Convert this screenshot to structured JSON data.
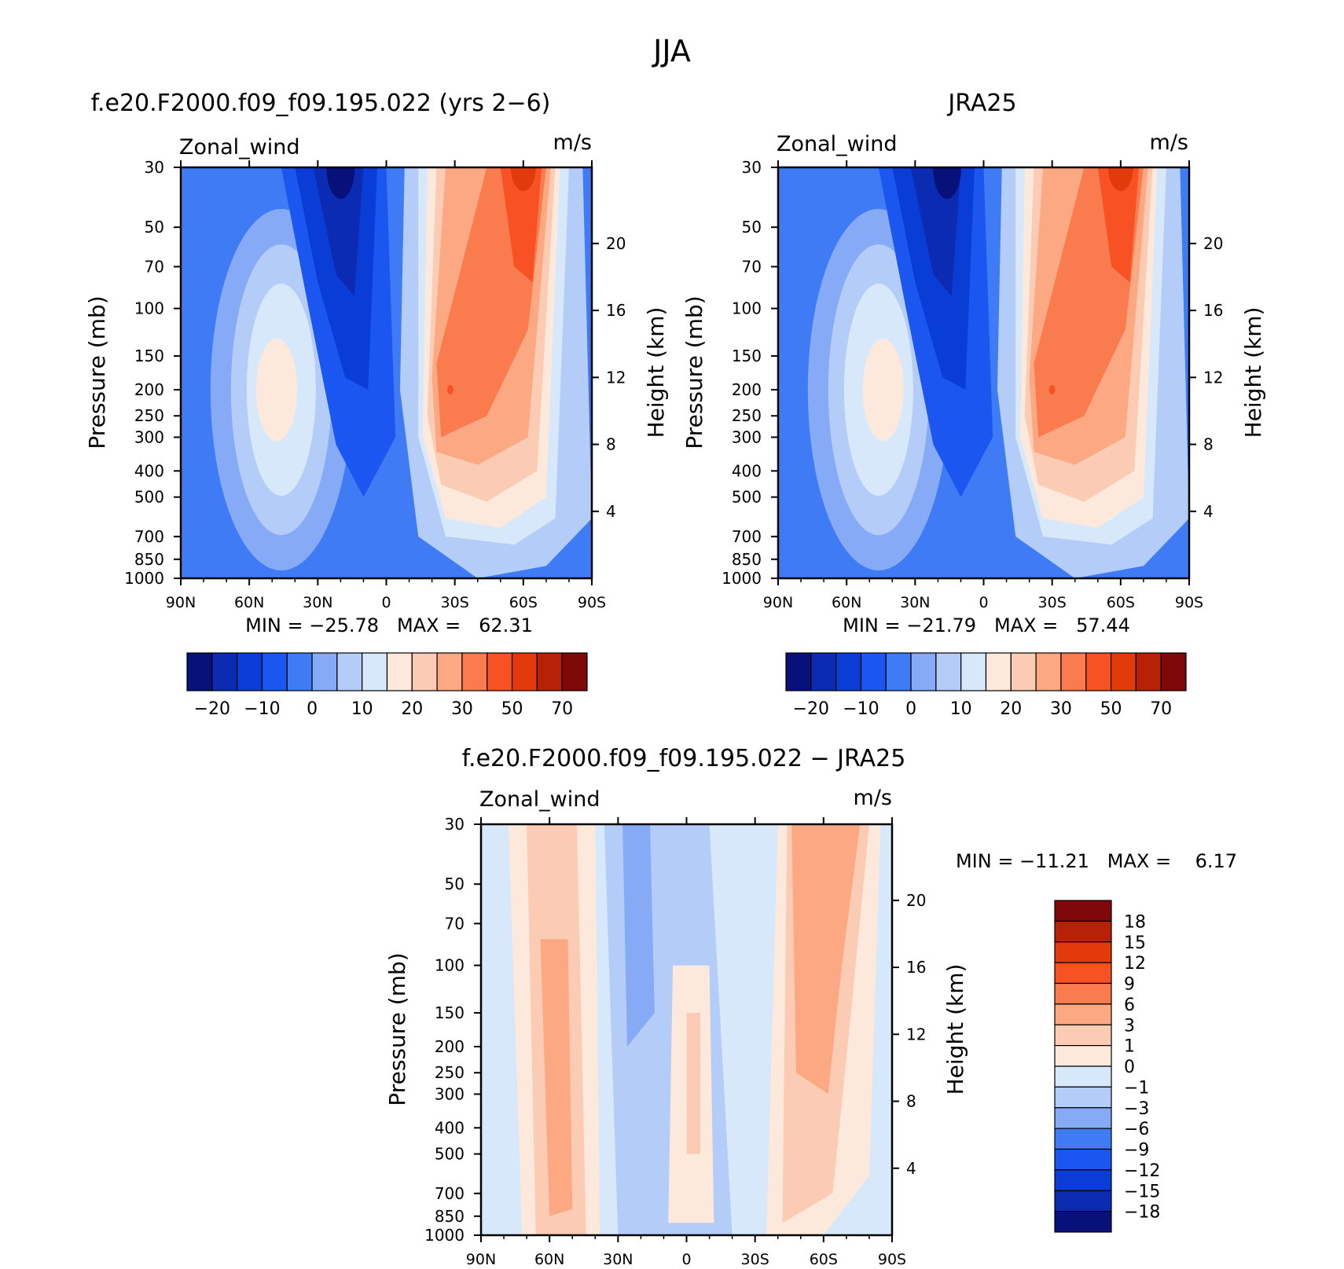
{
  "page_title": "JJA",
  "chart_data": [
    {
      "id": "model",
      "type": "heatmap",
      "title": "f.e20.F2000.f09_f09.195.022 (yrs 2−6)",
      "variable_label": "Zonal_wind",
      "units_label": "m/s",
      "ylabel": "Pressure (mb)",
      "y2label": "Height (km)",
      "x_ticks": [
        "90N",
        "60N",
        "30N",
        "0",
        "30S",
        "60S",
        "90S"
      ],
      "y_ticks": [
        "30",
        "50",
        "70",
        "100",
        "150",
        "200",
        "250",
        "300",
        "400",
        "500",
        "700",
        "850",
        "1000"
      ],
      "y2_ticks": [
        "20",
        "16",
        "12",
        "8",
        "4"
      ],
      "stats": "MIN = −25.78   MAX =   62.31",
      "colorbar_labels": [
        "−20",
        "−10",
        "0",
        "10",
        "20",
        "30",
        "50",
        "70"
      ],
      "colorbar_levels": [
        -25,
        -20,
        -15,
        -10,
        -5,
        0,
        5,
        10,
        15,
        20,
        25,
        30,
        40,
        50,
        60,
        70,
        80
      ],
      "features": [
        {
          "lat": -28,
          "p": 200,
          "peak": 62.31
        },
        {
          "lat": -60,
          "p": 30,
          "peak": 60
        },
        {
          "lat": 48,
          "p": 200,
          "peak": 18
        },
        {
          "lat": 20,
          "p": 30,
          "peak": -25.78
        }
      ]
    },
    {
      "id": "obs",
      "type": "heatmap",
      "title": "JRA25",
      "variable_label": "Zonal_wind",
      "units_label": "m/s",
      "ylabel": "Pressure (mb)",
      "y2label": "Height (km)",
      "x_ticks": [
        "90N",
        "60N",
        "30N",
        "0",
        "30S",
        "60S",
        "90S"
      ],
      "y_ticks": [
        "30",
        "50",
        "70",
        "100",
        "150",
        "200",
        "250",
        "300",
        "400",
        "500",
        "700",
        "850",
        "1000"
      ],
      "y2_ticks": [
        "20",
        "16",
        "12",
        "8",
        "4"
      ],
      "stats": "MIN = −21.79   MAX =   57.44",
      "colorbar_labels": [
        "−20",
        "−10",
        "0",
        "10",
        "20",
        "30",
        "50",
        "70"
      ],
      "colorbar_levels": [
        -25,
        -20,
        -15,
        -10,
        -5,
        0,
        5,
        10,
        15,
        20,
        25,
        30,
        40,
        50,
        60,
        70,
        80
      ],
      "features": [
        {
          "lat": -30,
          "p": 200,
          "peak": 57.44
        },
        {
          "lat": -60,
          "p": 30,
          "peak": 55
        },
        {
          "lat": 44,
          "p": 200,
          "peak": 17
        },
        {
          "lat": 16,
          "p": 30,
          "peak": -21.79
        }
      ]
    },
    {
      "id": "diff",
      "type": "heatmap",
      "title": "f.e20.F2000.f09_f09.195.022 − JRA25",
      "variable_label": "Zonal_wind",
      "units_label": "m/s",
      "ylabel": "Pressure (mb)",
      "y2label": "Height (km)",
      "x_ticks": [
        "90N",
        "60N",
        "30N",
        "0",
        "30S",
        "60S",
        "90S"
      ],
      "y_ticks": [
        "30",
        "50",
        "70",
        "100",
        "150",
        "200",
        "250",
        "300",
        "400",
        "500",
        "700",
        "850",
        "1000"
      ],
      "y2_ticks": [
        "20",
        "16",
        "12",
        "8",
        "4"
      ],
      "stats": "MIN = −11.21   MAX =    6.17",
      "colorbar_labels": [
        "18",
        "15",
        "12",
        "9",
        "6",
        "3",
        "1",
        "0",
        "−1",
        "−3",
        "−6",
        "−9",
        "−12",
        "−15",
        "−18"
      ],
      "colorbar_levels": [
        -18,
        -15,
        -12,
        -9,
        -6,
        -3,
        -1,
        0,
        1,
        3,
        6,
        9,
        12,
        15,
        18
      ]
    }
  ],
  "colors": {
    "palette16": [
      "#08107a",
      "#0a2bb2",
      "#0a3cd6",
      "#1b56f0",
      "#3f7bf4",
      "#86aaf5",
      "#b3ccf8",
      "#d8e8fb",
      "#fde9dc",
      "#fbcbb3",
      "#fba883",
      "#fa7b4e",
      "#f85124",
      "#e23a0b",
      "#b72107",
      "#7f0808"
    ]
  }
}
